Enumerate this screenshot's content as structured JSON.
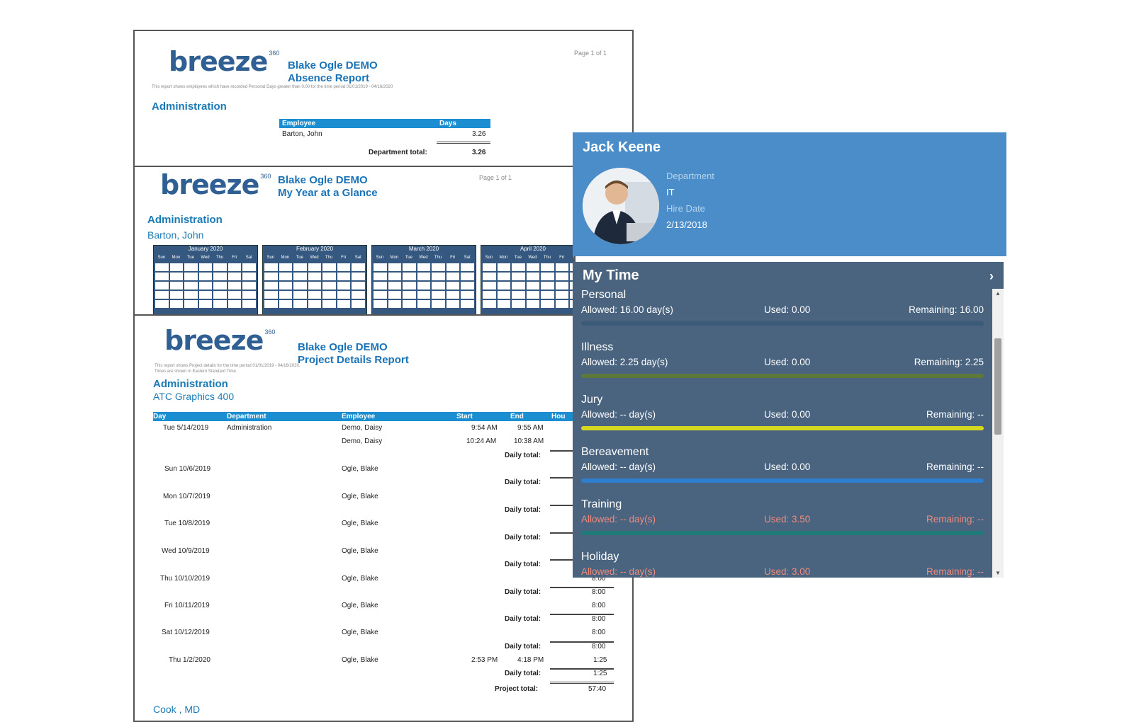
{
  "report1": {
    "logo": "breeze",
    "logo_sup": "360",
    "title1": "Blake Ogle DEMO",
    "title2": "Absence Report",
    "page": "Page 1 of 1",
    "desc": "This report shows employees which have recorded Personal Days greater than 0.00 for the time period 01/01/2019 - 04/16/2020",
    "dept": "Administration",
    "col_employee": "Employee",
    "col_days": "Days",
    "row_name": "Barton, John",
    "row_days": "3.26",
    "total_label": "Department total:",
    "total_value": "3.26"
  },
  "report2": {
    "logo": "breeze",
    "logo_sup": "360",
    "title1": "Blake Ogle DEMO",
    "title2": "My Year at a Glance",
    "page": "Page 1 of 1",
    "dept": "Administration",
    "employee": "Barton, John",
    "months": [
      "January 2020",
      "February 2020",
      "March 2020",
      "April 2020"
    ],
    "days": [
      "Sun",
      "Mon",
      "Tue",
      "Wed",
      "Thu",
      "Fri",
      "Sat"
    ]
  },
  "report3": {
    "logo": "breeze",
    "logo_sup": "360",
    "title1": "Blake Ogle DEMO",
    "title2": "Project Details Report",
    "desc1": "This report shows Project details for the time period 01/01/2019 - 04/16/2020.",
    "desc2": "Times are shown in Eastern Standard Time.",
    "dept": "Administration",
    "project": "ATC Graphics 400",
    "cols": [
      "Day",
      "Department",
      "Employee",
      "Start",
      "End",
      "Hou"
    ],
    "daily_total": "Daily total:",
    "rows": [
      {
        "day": "Tue  5/14/2019",
        "dept": "Administration",
        "emp": "Demo, Daisy",
        "start": "9:54 AM",
        "end": "9:55 AM",
        "hours": ""
      },
      {
        "day": "",
        "dept": "",
        "emp": "Demo, Daisy",
        "start": "10:24 AM",
        "end": "10:38 AM",
        "hours": ""
      },
      {
        "day": "Sun  10/6/2019",
        "emp": "Ogle, Blake"
      },
      {
        "day": "Mon  10/7/2019",
        "emp": "Ogle, Blake"
      },
      {
        "day": "Tue  10/8/2019",
        "emp": "Ogle, Blake"
      },
      {
        "day": "Wed  10/9/2019",
        "emp": "Ogle, Blake"
      },
      {
        "day": "Thu  10/10/2019",
        "emp": "Ogle, Blake"
      },
      {
        "day": "Fri  10/11/2019",
        "emp": "Ogle, Blake"
      },
      {
        "day": "Sat  10/12/2019",
        "emp": "Ogle, Blake"
      },
      {
        "day": "Thu  1/2/2020",
        "emp": "Ogle, Blake",
        "start": "2:53 PM",
        "end": "4:18 PM",
        "hours": "1:25"
      }
    ],
    "hours_vals": [
      "8:00",
      "8:00",
      "8:00",
      "8:00",
      "8:00",
      "8:00",
      "1:25",
      "1:25"
    ],
    "project_total_label": "Project total:",
    "project_total_value": "57:40",
    "footer_partial": "Cook , MD"
  },
  "profile": {
    "name": "Jack Keene",
    "department_label": "Department",
    "department": "IT",
    "hire_label": "Hire Date",
    "hire_date": "2/13/2018"
  },
  "mytime": {
    "title": "My Time",
    "items": [
      {
        "name": "Personal",
        "allowed": "Allowed: 16.00 day(s)",
        "used": "Used: 0.00",
        "remaining": "Remaining: 16.00",
        "color": "#3b5a78",
        "fill": 1.0,
        "warn": false
      },
      {
        "name": "Illness",
        "allowed": "Allowed: 2.25 day(s)",
        "used": "Used: 0.00",
        "remaining": "Remaining: 2.25",
        "color": "#5e7a3a",
        "fill": 1.0,
        "warn": false
      },
      {
        "name": "Jury",
        "allowed": "Allowed: -- day(s)",
        "used": "Used: 0.00",
        "remaining": "Remaining: --",
        "color": "#d6d820",
        "fill": 1.0,
        "warn": false
      },
      {
        "name": "Bereavement",
        "allowed": "Allowed: -- day(s)",
        "used": "Used: 0.00",
        "remaining": "Remaining: --",
        "color": "#2f7fd0",
        "fill": 1.0,
        "warn": false
      },
      {
        "name": "Training",
        "allowed": "Allowed: -- day(s)",
        "used": "Used: 3.50",
        "remaining": "Remaining: --",
        "color": "#1f7a78",
        "fill": 1.0,
        "warn": true
      },
      {
        "name": "Holiday",
        "allowed": "Allowed: -- day(s)",
        "used": "Used: 3.00",
        "remaining": "Remaining: --",
        "color": "#6a7a8a",
        "fill": 1.0,
        "warn": true
      }
    ]
  }
}
